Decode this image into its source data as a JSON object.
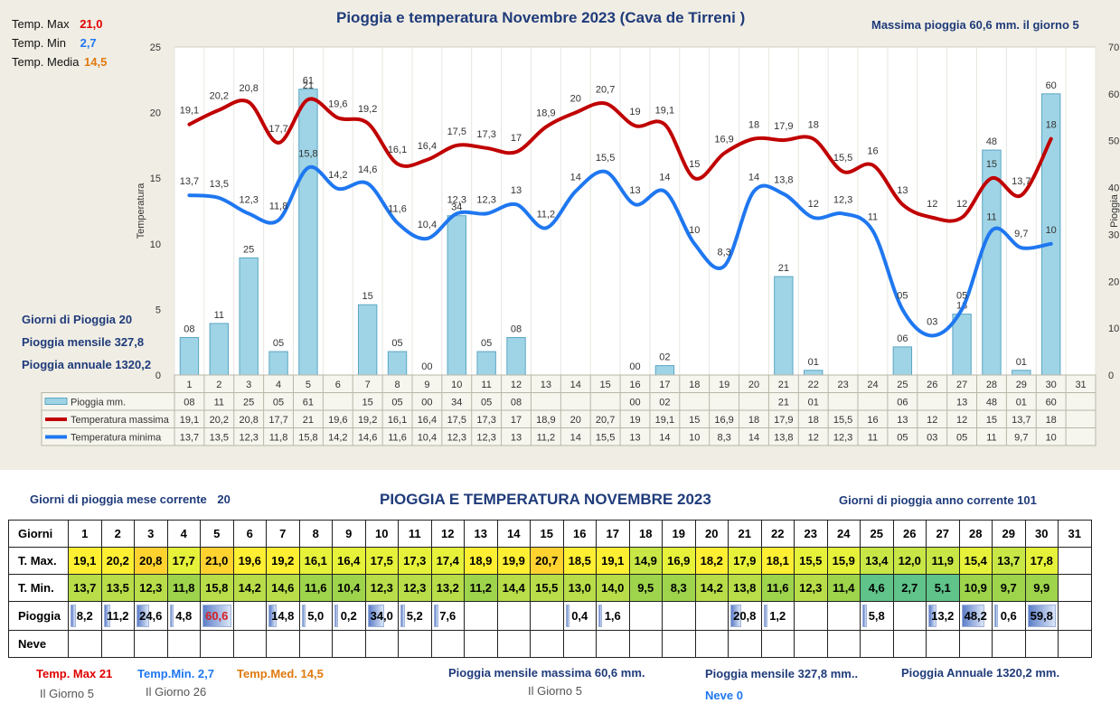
{
  "chart_data": {
    "type": "bar",
    "title": "Pioggia e temperatura Novembre 2023 (Cava de Tirreni )",
    "ylabel": "Temperatura",
    "y2label": "Pioggia",
    "ylim": [
      0,
      25
    ],
    "y2lim": [
      0,
      70
    ],
    "yticks": [
      "0",
      "5",
      "10",
      "15",
      "20",
      "25"
    ],
    "y2ticks": [
      "0",
      "10",
      "20",
      "30",
      "40",
      "50",
      "60",
      "70"
    ],
    "days": [
      "1",
      "2",
      "3",
      "4",
      "5",
      "6",
      "7",
      "8",
      "9",
      "10",
      "11",
      "12",
      "13",
      "14",
      "15",
      "16",
      "17",
      "18",
      "19",
      "20",
      "21",
      "22",
      "23",
      "24",
      "25",
      "26",
      "27",
      "28",
      "29",
      "30",
      "31"
    ],
    "series": [
      {
        "name": "Pioggia mm.",
        "type": "bar",
        "axis": "right",
        "color": "#9fd4e6",
        "values": [
          8,
          11,
          25,
          5,
          61,
          null,
          15,
          5,
          0,
          34,
          5,
          8,
          null,
          null,
          null,
          0,
          2,
          null,
          null,
          null,
          21,
          1,
          null,
          null,
          6,
          null,
          13,
          48,
          1,
          60,
          null
        ],
        "labels": [
          "08",
          "11",
          "25",
          "05",
          "61",
          "",
          "15",
          "05",
          "00",
          "34",
          "05",
          "08",
          "",
          "",
          "",
          "00",
          "02",
          "",
          "",
          "",
          "21",
          "01",
          "",
          "",
          "06",
          "",
          "13",
          "48",
          "01",
          "60",
          ""
        ]
      },
      {
        "name": "Temperatura massima",
        "type": "line",
        "axis": "left",
        "color": "#c00000",
        "values": [
          19.1,
          20.2,
          20.8,
          17.7,
          21,
          19.6,
          19.2,
          16.1,
          16.4,
          17.5,
          17.3,
          17,
          18.9,
          20,
          20.7,
          19,
          19.1,
          15,
          16.9,
          18,
          17.9,
          18,
          15.5,
          16,
          13,
          12,
          12,
          15,
          13.7,
          18,
          null
        ],
        "labels": [
          "19,1",
          "20,2",
          "20,8",
          "17,7",
          "21",
          "19,6",
          "19,2",
          "16,1",
          "16,4",
          "17,5",
          "17,3",
          "17",
          "18,9",
          "20",
          "20,7",
          "19",
          "19,1",
          "15",
          "16,9",
          "18",
          "17,9",
          "18",
          "15,5",
          "16",
          "13",
          "12",
          "12",
          "15",
          "13,7",
          "18",
          ""
        ]
      },
      {
        "name": "Temperatura minima",
        "type": "line",
        "axis": "left",
        "color": "#1f77f0",
        "values": [
          13.7,
          13.5,
          12.3,
          11.8,
          15.8,
          14.2,
          14.6,
          11.6,
          10.4,
          12.3,
          12.3,
          13,
          11.2,
          14,
          15.5,
          13,
          14,
          10,
          8.3,
          14,
          13.8,
          12,
          12.3,
          11,
          5,
          3,
          5,
          11,
          9.7,
          10,
          null
        ],
        "labels": [
          "13,7",
          "13,5",
          "12,3",
          "11,8",
          "15,8",
          "14,2",
          "14,6",
          "11,6",
          "10,4",
          "12,3",
          "12,3",
          "13",
          "11,2",
          "14",
          "15,5",
          "13",
          "14",
          "10",
          "8,3",
          "14",
          "13,8",
          "12",
          "12,3",
          "11",
          "05",
          "03",
          "05",
          "11",
          "9,7",
          "10",
          ""
        ]
      }
    ]
  },
  "top_left": {
    "tmax_label": "Temp. Max",
    "tmax_value": "21,0",
    "tmin_label": "Temp. Min",
    "tmin_value": "2,7",
    "tmed_label": "Temp. Media",
    "tmed_value": "14,5"
  },
  "top_right": {
    "text": "Massima pioggia  60,6 mm. il giorno  5"
  },
  "left_stats": {
    "giorni": "Giorni di Pioggia  20",
    "mensile": "Pioggia mensile  327,8",
    "annuale": "Pioggia annuale  1320,2"
  },
  "table": {
    "title": "PIOGGIA E TEMPERATURA NOVEMBRE 2023",
    "left_caption_label": "Giorni di pioggia",
    "left_caption_mid": "mese corrente",
    "left_caption_value": "20",
    "right_caption": "Giorni di pioggia anno corrente  101",
    "row_labels": [
      "Giorni",
      "T. Max.",
      "T. Min.",
      "Pioggia",
      "Neve"
    ],
    "days": [
      "1",
      "2",
      "3",
      "4",
      "5",
      "6",
      "7",
      "8",
      "9",
      "10",
      "11",
      "12",
      "13",
      "14",
      "15",
      "16",
      "17",
      "18",
      "19",
      "20",
      "21",
      "22",
      "23",
      "24",
      "25",
      "26",
      "27",
      "28",
      "29",
      "30",
      "31"
    ],
    "tmax": [
      "19,1",
      "20,2",
      "20,8",
      "17,7",
      "21,0",
      "19,6",
      "19,2",
      "16,1",
      "16,4",
      "17,5",
      "17,3",
      "17,4",
      "18,9",
      "19,9",
      "20,7",
      "18,5",
      "19,1",
      "14,9",
      "16,9",
      "18,2",
      "17,9",
      "18,1",
      "15,5",
      "15,9",
      "13,4",
      "12,0",
      "11,9",
      "15,4",
      "13,7",
      "17,8",
      ""
    ],
    "tmin": [
      "13,7",
      "13,5",
      "12,3",
      "11,8",
      "15,8",
      "14,2",
      "14,6",
      "11,6",
      "10,4",
      "12,3",
      "12,3",
      "13,2",
      "11,2",
      "14,4",
      "15,5",
      "13,0",
      "14,0",
      "9,5",
      "8,3",
      "14,2",
      "13,8",
      "11,6",
      "12,3",
      "11,4",
      "4,6",
      "2,7",
      "5,1",
      "10,9",
      "9,7",
      "9,9",
      ""
    ],
    "rain": [
      "8,2",
      "11,2",
      "24,6",
      "4,8",
      "60,6",
      "",
      "14,8",
      "5,0",
      "0,2",
      "34,0",
      "5,2",
      "7,6",
      "",
      "",
      "",
      "0,4",
      "1,6",
      "",
      "",
      "",
      "20,8",
      "1,2",
      "",
      "",
      "5,8",
      "",
      "13,2",
      "48,2",
      "0,6",
      "59,8",
      ""
    ],
    "rain_values": [
      8.2,
      11.2,
      24.6,
      4.8,
      60.6,
      0,
      14.8,
      5.0,
      0.2,
      34.0,
      5.2,
      7.6,
      0,
      0,
      0,
      0.4,
      1.6,
      0,
      0,
      0,
      20.8,
      1.2,
      0,
      0,
      5.8,
      0,
      13.2,
      48.2,
      0.6,
      59.8,
      0
    ],
    "tmax_values": [
      19.1,
      20.2,
      20.8,
      17.7,
      21.0,
      19.6,
      19.2,
      16.1,
      16.4,
      17.5,
      17.3,
      17.4,
      18.9,
      19.9,
      20.7,
      18.5,
      19.1,
      14.9,
      16.9,
      18.2,
      17.9,
      18.1,
      15.5,
      15.9,
      13.4,
      12.0,
      11.9,
      15.4,
      13.7,
      17.8,
      null
    ],
    "tmin_values": [
      13.7,
      13.5,
      12.3,
      11.8,
      15.8,
      14.2,
      14.6,
      11.6,
      10.4,
      12.3,
      12.3,
      13.2,
      11.2,
      14.4,
      15.5,
      13.0,
      14.0,
      9.5,
      8.3,
      14.2,
      13.8,
      11.6,
      12.3,
      11.4,
      4.6,
      2.7,
      5.1,
      10.9,
      9.7,
      9.9,
      null
    ]
  },
  "footer": {
    "tmax": "Temp. Max 21",
    "tmax_day": "Il Giorno   5",
    "tmin": "Temp.Min.  2,7",
    "tmin_day": "Il Giorno 26",
    "tmed": "Temp.Med. 14,5",
    "max_monthly": "Pioggia mensile massima 60,6   mm.",
    "max_monthly_day": "Il Giorno  5",
    "monthly": "Pioggia mensile  327,8 mm..",
    "annual": "Pioggia Annuale  1320,2 mm.",
    "snow": "Neve 0"
  },
  "colors": {
    "tmax": "#c00000",
    "tmin": "#1f77f0",
    "rain": "#9fd4e6",
    "title": "#1f3b7a"
  }
}
